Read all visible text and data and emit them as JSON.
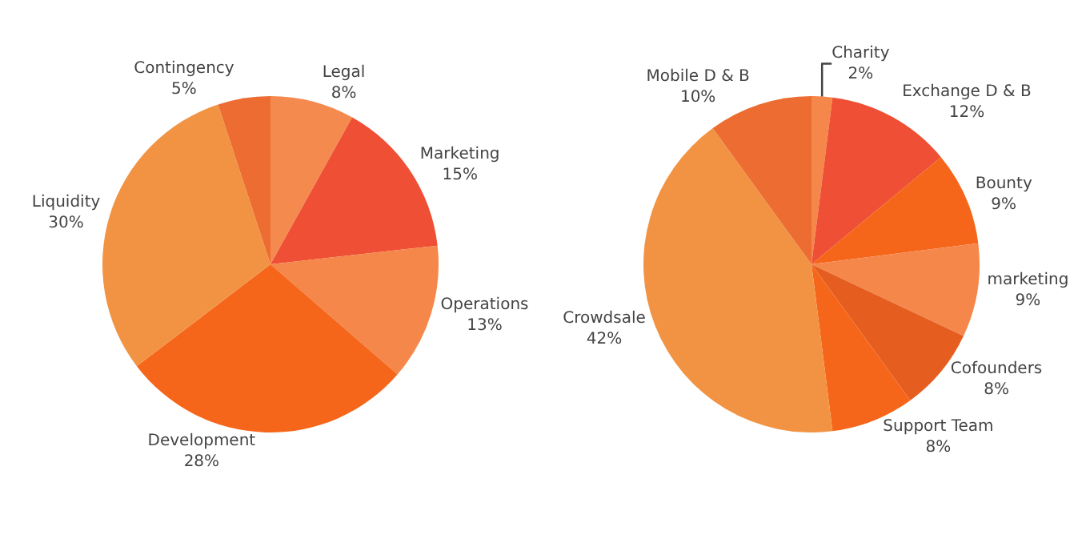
{
  "chart_data": [
    {
      "type": "pie",
      "categories": [
        "Legal",
        "Marketing",
        "Operations",
        "Development",
        "Liquidity",
        "Contingency"
      ],
      "values": [
        8,
        15,
        13,
        28,
        30,
        5
      ],
      "value_labels": [
        "8%",
        "15%",
        "13%",
        "28%",
        "30%",
        "5%"
      ],
      "colors": [
        "#f58a4f",
        "#ee4f35",
        "#f5874a",
        "#f5661a",
        "#f29343",
        "#ec6c32"
      ]
    },
    {
      "type": "pie",
      "categories": [
        "Charity",
        "Exchange D & B",
        "Bounty",
        "marketing",
        "Cofounders",
        "Support Team",
        "Crowdsale",
        "Mobile D & B"
      ],
      "values": [
        2,
        12,
        9,
        9,
        8,
        8,
        42,
        10
      ],
      "value_labels": [
        "2%",
        "12%",
        "9%",
        "9%",
        "8%",
        "8%",
        "42%",
        "10%"
      ],
      "colors": [
        "#f5874a",
        "#ee4f35",
        "#f5661a",
        "#f5874a",
        "#e55e1f",
        "#f5661a",
        "#f29343",
        "#ec6c32"
      ]
    }
  ]
}
